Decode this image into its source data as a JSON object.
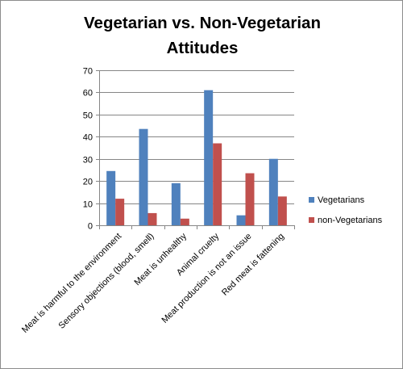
{
  "chart_data": {
    "type": "bar",
    "title_lines": [
      "Vegetarian vs. Non-Vegetarian",
      "Attitudes"
    ],
    "categories": [
      "Meat is harmful to the environment",
      "Sensory objections (blood, smell)",
      "Meat is unhealthy",
      "Animal cruelty",
      "Meat production is not an issue",
      "Red meat is fattening"
    ],
    "series": [
      {
        "name": "Vegetarians",
        "color": "#4f81bd",
        "values": [
          24.5,
          43.5,
          19,
          61,
          4.5,
          30
        ]
      },
      {
        "name": "non-Vegetarians",
        "color": "#c0504d",
        "values": [
          12,
          5.5,
          3,
          37,
          23.5,
          13
        ]
      }
    ],
    "ylim": [
      0,
      70
    ],
    "yticks": [
      "0",
      "10",
      "20",
      "30",
      "40",
      "50",
      "60",
      "70"
    ],
    "grid": true,
    "legend_position": "right"
  }
}
